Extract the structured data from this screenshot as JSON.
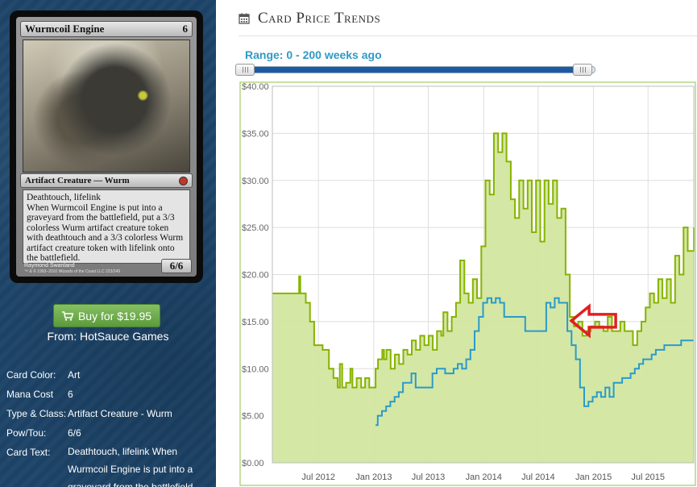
{
  "card": {
    "name": "Wurmcoil Engine",
    "mana": "6",
    "type_line": "Artifact Creature — Wurm",
    "rules_line1": "Deathtouch, lifelink",
    "rules_line2": "When Wurmcoil Engine is put into a graveyard from the battlefield, put a 3/3 colorless Wurm artifact creature token with deathtouch and a 3/3 colorless Wurm artifact creature token with lifelink onto the battlefield.",
    "pt": "6/6",
    "artist": "Raymond Swanland",
    "copyright": "™ & © 1993–2010 Wizards of the Coast LLC 223/249"
  },
  "buy": {
    "label": "Buy for $19.95",
    "from": "From: HotSauce Games"
  },
  "details": [
    {
      "label": "Card Color:",
      "value": "Art"
    },
    {
      "label": "Mana Cost",
      "value": "6"
    },
    {
      "label": "Type & Class:",
      "value": "Artifact Creature - Wurm"
    },
    {
      "label": "Pow/Tou:",
      "value": "6/6"
    },
    {
      "label": "Card Text:",
      "value": "Deathtouch, lifelink When Wurmcoil Engine is put into a graveyard from the battlefield"
    }
  ],
  "header": {
    "title": "Card Price Trends",
    "icon": "calendar-icon"
  },
  "range": {
    "label": "Range: 0 - 200 weeks ago"
  },
  "colors": {
    "sidebar": "#1d4468",
    "green_line": "#86b300",
    "green_fill": "#d3e6a0",
    "blue_line": "#2a9bc9",
    "arrow": "#e02020",
    "buy_button": "#6fae4b"
  },
  "chart_data": {
    "type": "area",
    "title": "",
    "xlabel": "",
    "ylabel": "",
    "ylim": [
      0,
      40
    ],
    "x_range": [
      "2012-01-30",
      "2015-11-30"
    ],
    "y_ticks": [
      "$0.00",
      "$5.00",
      "$10.00",
      "$15.00",
      "$20.00",
      "$25.00",
      "$30.00",
      "$35.00",
      "$40.00"
    ],
    "y_tick_values": [
      0,
      5,
      10,
      15,
      20,
      25,
      30,
      35,
      40
    ],
    "x_ticks": [
      "Jul 2012",
      "Jan 2013",
      "Jul 2013",
      "Jan 2014",
      "Jul 2014",
      "Jan 2015",
      "Jul 2015"
    ],
    "x_tick_dates": [
      "2012-07-01",
      "2013-01-01",
      "2013-07-01",
      "2014-01-01",
      "2014-07-01",
      "2015-01-01",
      "2015-07-01"
    ],
    "grid": true,
    "legend": "none",
    "series": [
      {
        "style": "area",
        "points": [
          [
            "2012-01-30",
            18.0
          ],
          [
            "2012-04-25",
            18.0
          ],
          [
            "2012-04-28",
            19.8
          ],
          [
            "2012-05-02",
            18.0
          ],
          [
            "2012-05-20",
            17.0
          ],
          [
            "2012-06-03",
            15.0
          ],
          [
            "2012-06-17",
            12.5
          ],
          [
            "2012-07-15",
            12.0
          ],
          [
            "2012-08-05",
            10.0
          ],
          [
            "2012-08-20",
            9.0
          ],
          [
            "2012-09-03",
            8.0
          ],
          [
            "2012-09-10",
            10.5
          ],
          [
            "2012-09-18",
            8.0
          ],
          [
            "2012-10-01",
            8.5
          ],
          [
            "2012-10-15",
            10.0
          ],
          [
            "2012-10-22",
            8.0
          ],
          [
            "2012-11-05",
            9.0
          ],
          [
            "2012-11-20",
            8.0
          ],
          [
            "2012-12-03",
            9.0
          ],
          [
            "2012-12-17",
            8.0
          ],
          [
            "2013-01-07",
            10.0
          ],
          [
            "2013-01-15",
            11.0
          ],
          [
            "2013-01-29",
            12.0
          ],
          [
            "2013-02-04",
            11.0
          ],
          [
            "2013-02-12",
            12.0
          ],
          [
            "2013-02-26",
            10.0
          ],
          [
            "2013-03-12",
            11.5
          ],
          [
            "2013-03-26",
            10.5
          ],
          [
            "2013-04-09",
            12.0
          ],
          [
            "2013-04-23",
            11.5
          ],
          [
            "2013-05-07",
            13.0
          ],
          [
            "2013-05-21",
            12.0
          ],
          [
            "2013-06-04",
            13.5
          ],
          [
            "2013-06-18",
            12.5
          ],
          [
            "2013-07-02",
            13.5
          ],
          [
            "2013-07-16",
            12.0
          ],
          [
            "2013-07-30",
            14.0
          ],
          [
            "2013-08-13",
            13.5
          ],
          [
            "2013-08-20",
            16.0
          ],
          [
            "2013-09-03",
            14.0
          ],
          [
            "2013-09-17",
            15.5
          ],
          [
            "2013-10-01",
            17.0
          ],
          [
            "2013-10-15",
            21.5
          ],
          [
            "2013-10-29",
            18.0
          ],
          [
            "2013-11-12",
            17.0
          ],
          [
            "2013-11-26",
            19.5
          ],
          [
            "2013-12-10",
            17.5
          ],
          [
            "2013-12-24",
            23.0
          ],
          [
            "2014-01-07",
            30.0
          ],
          [
            "2014-01-21",
            28.5
          ],
          [
            "2014-02-04",
            35.0
          ],
          [
            "2014-02-18",
            33.0
          ],
          [
            "2014-03-04",
            35.0
          ],
          [
            "2014-03-18",
            32.0
          ],
          [
            "2014-04-01",
            28.0
          ],
          [
            "2014-04-15",
            26.0
          ],
          [
            "2014-04-29",
            30.0
          ],
          [
            "2014-05-13",
            27.0
          ],
          [
            "2014-05-27",
            30.0
          ],
          [
            "2014-06-10",
            24.5
          ],
          [
            "2014-06-24",
            30.0
          ],
          [
            "2014-07-08",
            23.5
          ],
          [
            "2014-07-22",
            30.0
          ],
          [
            "2014-08-05",
            27.5
          ],
          [
            "2014-08-19",
            30.0
          ],
          [
            "2014-09-02",
            26.0
          ],
          [
            "2014-09-16",
            27.0
          ],
          [
            "2014-09-30",
            20.0
          ],
          [
            "2014-10-14",
            15.5
          ],
          [
            "2014-10-28",
            14.5
          ],
          [
            "2014-11-11",
            15.0
          ],
          [
            "2014-11-25",
            13.5
          ],
          [
            "2014-12-09",
            14.0
          ],
          [
            "2014-12-23",
            14.5
          ],
          [
            "2015-01-06",
            15.0
          ],
          [
            "2015-01-20",
            14.5
          ],
          [
            "2015-02-03",
            14.0
          ],
          [
            "2015-02-17",
            15.5
          ],
          [
            "2015-03-03",
            14.0
          ],
          [
            "2015-03-17",
            14.0
          ],
          [
            "2015-03-31",
            15.0
          ],
          [
            "2015-04-14",
            14.0
          ],
          [
            "2015-04-28",
            14.0
          ],
          [
            "2015-05-12",
            12.5
          ],
          [
            "2015-05-26",
            14.0
          ],
          [
            "2015-06-09",
            15.0
          ],
          [
            "2015-06-23",
            16.5
          ],
          [
            "2015-07-07",
            18.0
          ],
          [
            "2015-07-21",
            17.0
          ],
          [
            "2015-08-04",
            19.5
          ],
          [
            "2015-08-18",
            17.5
          ],
          [
            "2015-09-01",
            19.5
          ],
          [
            "2015-09-15",
            17.0
          ],
          [
            "2015-09-29",
            22.0
          ],
          [
            "2015-10-13",
            20.0
          ],
          [
            "2015-10-27",
            25.0
          ],
          [
            "2015-11-10",
            22.5
          ],
          [
            "2015-11-30",
            25.0
          ]
        ]
      },
      {
        "style": "line",
        "points": [
          [
            "2013-01-07",
            4.0
          ],
          [
            "2013-01-14",
            5.0
          ],
          [
            "2013-01-28",
            5.5
          ],
          [
            "2013-02-11",
            6.0
          ],
          [
            "2013-02-25",
            6.5
          ],
          [
            "2013-03-11",
            7.0
          ],
          [
            "2013-03-25",
            7.5
          ],
          [
            "2013-04-08",
            8.5
          ],
          [
            "2013-04-22",
            8.5
          ],
          [
            "2013-05-06",
            9.5
          ],
          [
            "2013-05-20",
            8.0
          ],
          [
            "2013-06-03",
            8.0
          ],
          [
            "2013-06-17",
            8.0
          ],
          [
            "2013-07-01",
            8.0
          ],
          [
            "2013-07-15",
            9.5
          ],
          [
            "2013-07-29",
            10.0
          ],
          [
            "2013-08-12",
            10.0
          ],
          [
            "2013-08-26",
            9.5
          ],
          [
            "2013-09-09",
            9.5
          ],
          [
            "2013-09-23",
            10.0
          ],
          [
            "2013-10-07",
            10.5
          ],
          [
            "2013-10-21",
            10.0
          ],
          [
            "2013-11-04",
            11.0
          ],
          [
            "2013-11-18",
            12.0
          ],
          [
            "2013-12-02",
            14.0
          ],
          [
            "2013-12-16",
            15.5
          ],
          [
            "2013-12-30",
            17.0
          ],
          [
            "2014-01-13",
            17.5
          ],
          [
            "2014-01-27",
            17.0
          ],
          [
            "2014-02-10",
            17.5
          ],
          [
            "2014-02-24",
            17.0
          ],
          [
            "2014-03-10",
            15.5
          ],
          [
            "2014-03-24",
            15.5
          ],
          [
            "2014-04-07",
            15.5
          ],
          [
            "2014-04-21",
            15.5
          ],
          [
            "2014-05-05",
            15.5
          ],
          [
            "2014-05-19",
            14.0
          ],
          [
            "2014-06-02",
            14.0
          ],
          [
            "2014-06-16",
            14.0
          ],
          [
            "2014-06-30",
            14.0
          ],
          [
            "2014-07-14",
            14.0
          ],
          [
            "2014-07-28",
            17.0
          ],
          [
            "2014-08-11",
            16.5
          ],
          [
            "2014-08-25",
            17.5
          ],
          [
            "2014-09-08",
            17.0
          ],
          [
            "2014-09-22",
            17.0
          ],
          [
            "2014-10-06",
            14.0
          ],
          [
            "2014-10-20",
            12.5
          ],
          [
            "2014-11-03",
            11.0
          ],
          [
            "2014-11-17",
            8.0
          ],
          [
            "2014-12-01",
            6.0
          ],
          [
            "2014-12-15",
            6.5
          ],
          [
            "2014-12-29",
            7.0
          ],
          [
            "2015-01-12",
            7.5
          ],
          [
            "2015-01-26",
            7.0
          ],
          [
            "2015-02-09",
            8.0
          ],
          [
            "2015-02-23",
            7.0
          ],
          [
            "2015-03-09",
            8.5
          ],
          [
            "2015-03-23",
            8.5
          ],
          [
            "2015-04-06",
            9.0
          ],
          [
            "2015-04-20",
            9.0
          ],
          [
            "2015-05-04",
            9.5
          ],
          [
            "2015-05-18",
            10.0
          ],
          [
            "2015-06-01",
            10.5
          ],
          [
            "2015-06-15",
            11.0
          ],
          [
            "2015-06-29",
            11.0
          ],
          [
            "2015-07-13",
            11.5
          ],
          [
            "2015-07-27",
            12.0
          ],
          [
            "2015-08-10",
            12.0
          ],
          [
            "2015-08-24",
            12.5
          ],
          [
            "2015-09-07",
            12.5
          ],
          [
            "2015-09-21",
            12.5
          ],
          [
            "2015-10-05",
            12.5
          ],
          [
            "2015-10-19",
            13.0
          ],
          [
            "2015-11-02",
            13.0
          ],
          [
            "2015-11-30",
            13.0
          ]
        ]
      }
    ],
    "annotations": [
      {
        "type": "arrow",
        "shape": "outline",
        "color": "#e02020",
        "direction": "left",
        "at": [
          "2014-10-14",
          15.0
        ]
      }
    ]
  }
}
